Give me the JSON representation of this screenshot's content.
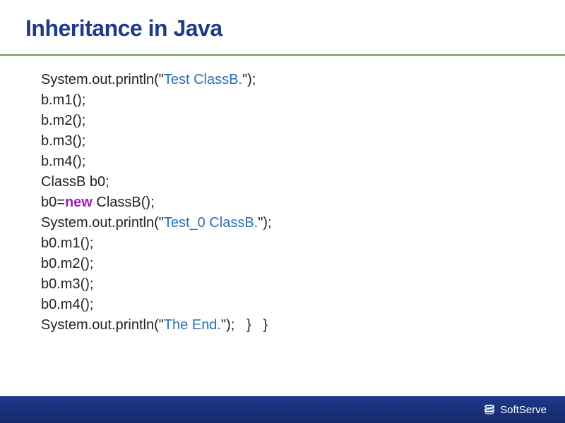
{
  "slide": {
    "title": "Inheritance in Java",
    "title_color": "#1f3a8a",
    "title_fontsize": 32,
    "divider_color": "#6b8f5a",
    "background_color": "#ffffff",
    "code_fontsize": 20,
    "code_color": "#222222",
    "string_color": "#2a6fb5",
    "keyword_color": "#9a1fb0"
  },
  "code": {
    "lines": [
      {
        "segments": [
          {
            "t": "System.out.println(\"",
            "c": "plain"
          },
          {
            "t": "Test ClassB.",
            "c": "str"
          },
          {
            "t": "\");",
            "c": "plain"
          }
        ]
      },
      {
        "segments": [
          {
            "t": "b.m1();",
            "c": "plain"
          }
        ]
      },
      {
        "segments": [
          {
            "t": "b.m2();",
            "c": "plain"
          }
        ]
      },
      {
        "segments": [
          {
            "t": "b.m3();",
            "c": "plain"
          }
        ]
      },
      {
        "segments": [
          {
            "t": "b.m4();",
            "c": "plain"
          }
        ]
      },
      {
        "segments": [
          {
            "t": "ClassB b0;",
            "c": "plain"
          }
        ]
      },
      {
        "segments": [
          {
            "t": "b0=",
            "c": "plain"
          },
          {
            "t": "new",
            "c": "kw"
          },
          {
            "t": " ClassB();",
            "c": "plain"
          }
        ]
      },
      {
        "segments": [
          {
            "t": "System.out.println(\"",
            "c": "plain"
          },
          {
            "t": "Test_0 ClassB.",
            "c": "str"
          },
          {
            "t": "\");",
            "c": "plain"
          }
        ]
      },
      {
        "segments": [
          {
            "t": "b0.m1();",
            "c": "plain"
          }
        ]
      },
      {
        "segments": [
          {
            "t": "b0.m2();",
            "c": "plain"
          }
        ]
      },
      {
        "segments": [
          {
            "t": "b0.m3();",
            "c": "plain"
          }
        ]
      },
      {
        "segments": [
          {
            "t": "b0.m4();",
            "c": "plain"
          }
        ]
      },
      {
        "segments": [
          {
            "t": "System.out.println(\"",
            "c": "plain"
          },
          {
            "t": "The End.",
            "c": "str"
          },
          {
            "t": "\");   }   }",
            "c": "plain"
          }
        ]
      }
    ]
  },
  "footer": {
    "brand_text": "SoftServe",
    "background_color": "#1f3a8a",
    "text_color": "#ffffff",
    "logo_color": "#ffffff"
  }
}
